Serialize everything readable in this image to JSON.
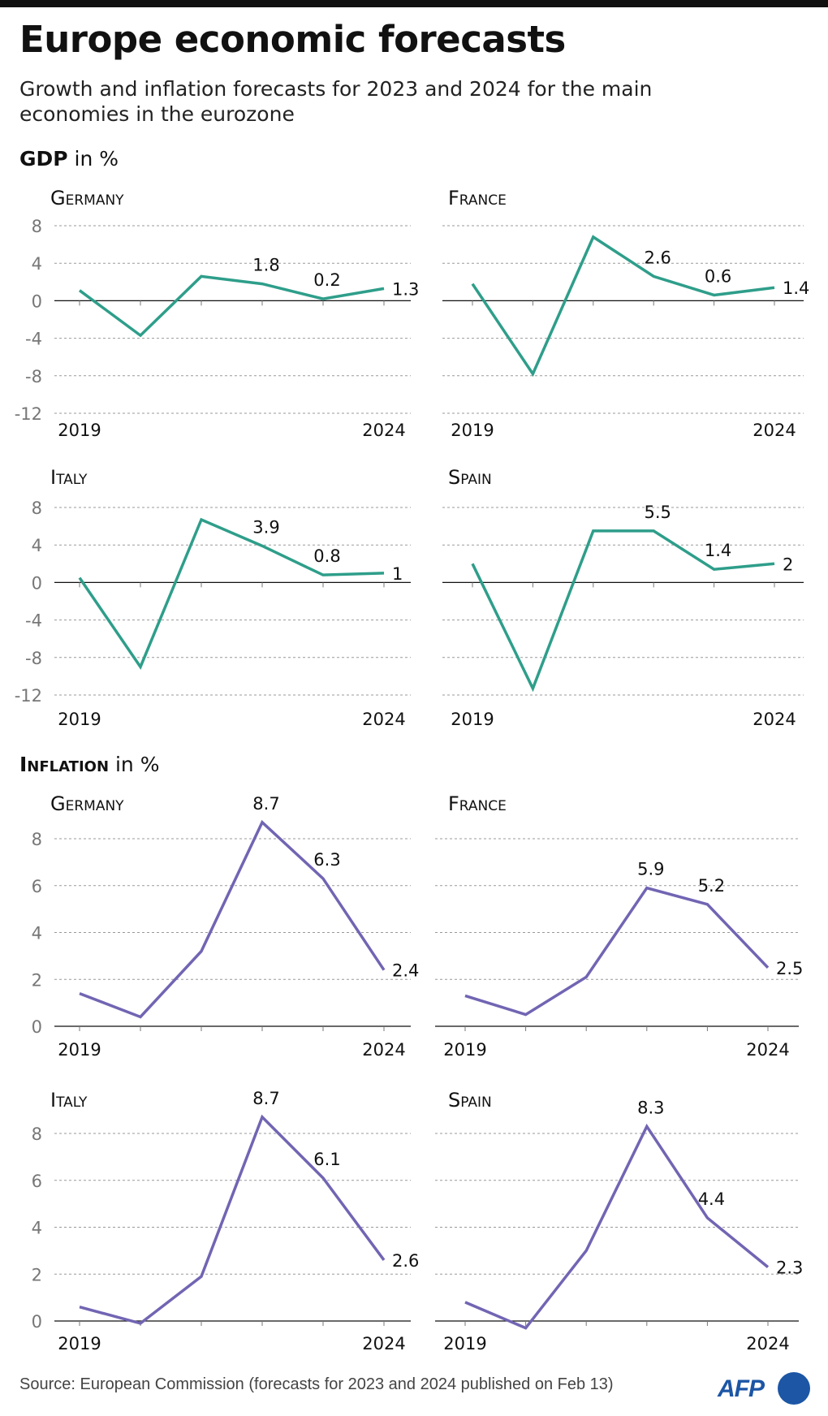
{
  "title": "Europe economic forecasts",
  "subtitle": "Growth and inflation forecasts for 2023 and 2024 for the main economies in the eurozone",
  "gdp_header": {
    "bold": "GDP",
    "rest": " in %"
  },
  "inflation_header": {
    "bold": "Inflation",
    "rest": " in %"
  },
  "source": "Source: European Commission (forecasts for 2023 and 2024 published on Feb 13)",
  "logo": "AFP",
  "colors": {
    "gdp": "#2e9e8a",
    "inflation": "#7165b3"
  },
  "chart_data": [
    {
      "type": "line",
      "group": "GDP",
      "title": "Germany",
      "x": [
        2019,
        2020,
        2021,
        2022,
        2023,
        2024
      ],
      "values": [
        1.1,
        -3.7,
        2.6,
        1.8,
        0.2,
        1.3
      ],
      "data_labels": [
        "",
        "",
        "",
        "1.8",
        "0.2",
        "1.3"
      ],
      "ylim": [
        -12,
        8
      ],
      "yticks": [
        8,
        4,
        0,
        -4,
        -8,
        -12
      ],
      "xtick_labels": [
        "2019",
        "2024"
      ],
      "grid": true
    },
    {
      "type": "line",
      "group": "GDP",
      "title": "France",
      "x": [
        2019,
        2020,
        2021,
        2022,
        2023,
        2024
      ],
      "values": [
        1.8,
        -7.8,
        6.8,
        2.6,
        0.6,
        1.4
      ],
      "data_labels": [
        "",
        "",
        "",
        "2.6",
        "0.6",
        "1.4"
      ],
      "ylim": [
        -12,
        8
      ],
      "yticks": [],
      "xtick_labels": [
        "2019",
        "2024"
      ],
      "grid": true
    },
    {
      "type": "line",
      "group": "GDP",
      "title": "Italy",
      "x": [
        2019,
        2020,
        2021,
        2022,
        2023,
        2024
      ],
      "values": [
        0.5,
        -9.0,
        6.7,
        3.9,
        0.8,
        1
      ],
      "data_labels": [
        "",
        "",
        "",
        "3.9",
        "0.8",
        "1"
      ],
      "ylim": [
        -12,
        8
      ],
      "yticks": [
        8,
        4,
        0,
        -4,
        -8,
        -12
      ],
      "xtick_labels": [
        "2019",
        "2024"
      ],
      "grid": true
    },
    {
      "type": "line",
      "group": "GDP",
      "title": "Spain",
      "x": [
        2019,
        2020,
        2021,
        2022,
        2023,
        2024
      ],
      "values": [
        2.0,
        -11.3,
        5.5,
        5.5,
        1.4,
        2
      ],
      "data_labels": [
        "",
        "",
        "",
        "5.5",
        "1.4",
        "2"
      ],
      "ylim": [
        -12,
        8
      ],
      "yticks": [],
      "xtick_labels": [
        "2019",
        "2024"
      ],
      "grid": true
    },
    {
      "type": "line",
      "group": "Inflation",
      "title": "Germany",
      "x": [
        2019,
        2020,
        2021,
        2022,
        2023,
        2024
      ],
      "values": [
        1.4,
        0.4,
        3.2,
        8.7,
        6.3,
        2.4
      ],
      "data_labels": [
        "",
        "",
        "",
        "8.7",
        "6.3",
        "2.4"
      ],
      "ylim": [
        0,
        8
      ],
      "yticks": [
        8,
        6,
        4,
        2,
        0
      ],
      "xtick_labels": [
        "2019",
        "2024"
      ],
      "grid": true
    },
    {
      "type": "line",
      "group": "Inflation",
      "title": "France",
      "x": [
        2019,
        2020,
        2021,
        2022,
        2023,
        2024
      ],
      "values": [
        1.3,
        0.5,
        2.1,
        5.9,
        5.2,
        2.5
      ],
      "data_labels": [
        "",
        "",
        "",
        "5.9",
        "5.2",
        "2.5"
      ],
      "ylim": [
        0,
        8
      ],
      "yticks": [],
      "xtick_labels": [
        "2019",
        "2024"
      ],
      "grid": true
    },
    {
      "type": "line",
      "group": "Inflation",
      "title": "Italy",
      "x": [
        2019,
        2020,
        2021,
        2022,
        2023,
        2024
      ],
      "values": [
        0.6,
        -0.1,
        1.9,
        8.7,
        6.1,
        2.6
      ],
      "data_labels": [
        "",
        "",
        "",
        "8.7",
        "6.1",
        "2.6"
      ],
      "ylim": [
        0,
        8
      ],
      "yticks": [
        8,
        6,
        4,
        2,
        0
      ],
      "xtick_labels": [
        "2019",
        "2024"
      ],
      "grid": true
    },
    {
      "type": "line",
      "group": "Inflation",
      "title": "Spain",
      "x": [
        2019,
        2020,
        2021,
        2022,
        2023,
        2024
      ],
      "values": [
        0.8,
        -0.3,
        3.0,
        8.3,
        4.4,
        2.3
      ],
      "data_labels": [
        "",
        "",
        "",
        "8.3",
        "4.4",
        "2.3"
      ],
      "ylim": [
        0,
        8
      ],
      "yticks": [],
      "xtick_labels": [
        "2019",
        "2024"
      ],
      "grid": true
    }
  ]
}
